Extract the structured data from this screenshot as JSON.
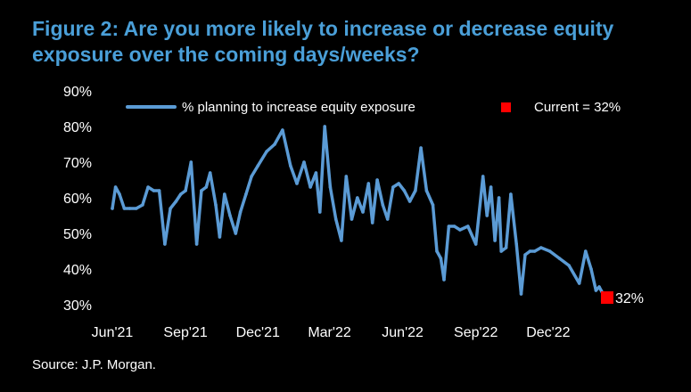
{
  "title": "Figure 2: Are you more likely to increase or decrease equity exposure over the coming days/weeks?",
  "source": "Source: J.P. Morgan.",
  "colors": {
    "title": "#4a9fd8",
    "line": "#5b9bd5",
    "marker": "#ff0000",
    "background": "#000000",
    "text": "#ffffff"
  },
  "chart_data": {
    "type": "line",
    "ylim": [
      30,
      90
    ],
    "yticks": [
      "30%",
      "40%",
      "50%",
      "60%",
      "70%",
      "80%",
      "90%"
    ],
    "yticks_values": [
      30,
      40,
      50,
      60,
      70,
      80,
      90
    ],
    "xticks": [
      "Jun'21",
      "Sep'21",
      "Dec'21",
      "Mar'22",
      "Jun'22",
      "Sep'22",
      "Dec'22"
    ],
    "xlim": [
      "2021-06-01",
      "2023-02-20"
    ],
    "xticks_dates": [
      "2021-06-01",
      "2021-09-01",
      "2021-12-01",
      "2022-03-01",
      "2022-06-01",
      "2022-09-01",
      "2022-12-01"
    ],
    "grid": false,
    "legend_position": "top",
    "series": [
      {
        "name": "% planning to increase equity exposure",
        "x": [
          "2021-06-01",
          "2021-06-05",
          "2021-06-10",
          "2021-06-16",
          "2021-06-23",
          "2021-07-01",
          "2021-07-09",
          "2021-07-16",
          "2021-07-23",
          "2021-07-30",
          "2021-08-06",
          "2021-08-13",
          "2021-08-20",
          "2021-08-26",
          "2021-09-01",
          "2021-09-08",
          "2021-09-15",
          "2021-09-21",
          "2021-09-27",
          "2021-10-02",
          "2021-10-09",
          "2021-10-14",
          "2021-10-20",
          "2021-10-27",
          "2021-11-03",
          "2021-11-09",
          "2021-11-16",
          "2021-11-23",
          "2021-12-01",
          "2021-12-12",
          "2021-12-22",
          "2022-01-01",
          "2022-01-11",
          "2022-01-19",
          "2022-01-28",
          "2022-02-05",
          "2022-02-12",
          "2022-02-17",
          "2022-02-23",
          "2022-03-02",
          "2022-03-09",
          "2022-03-16",
          "2022-03-22",
          "2022-03-29",
          "2022-04-05",
          "2022-04-12",
          "2022-04-19",
          "2022-04-24",
          "2022-04-30",
          "2022-05-07",
          "2022-05-13",
          "2022-05-20",
          "2022-05-27",
          "2022-06-03",
          "2022-06-10",
          "2022-06-17",
          "2022-06-24",
          "2022-07-01",
          "2022-07-09",
          "2022-07-14",
          "2022-07-19",
          "2022-07-23",
          "2022-07-29",
          "2022-08-05",
          "2022-08-12",
          "2022-08-22",
          "2022-09-01",
          "2022-09-10",
          "2022-09-15",
          "2022-09-20",
          "2022-09-25",
          "2022-09-30",
          "2022-10-03",
          "2022-10-09",
          "2022-10-15",
          "2022-10-22",
          "2022-10-28",
          "2022-11-02",
          "2022-11-08",
          "2022-11-14",
          "2022-11-22",
          "2022-12-03",
          "2022-12-15",
          "2022-12-27",
          "2023-01-09",
          "2023-01-17",
          "2023-01-24",
          "2023-01-30",
          "2023-02-03",
          "2023-02-08",
          "2023-02-12"
        ],
        "values": [
          57,
          63,
          61,
          57,
          57,
          57,
          58,
          63,
          62,
          62,
          47,
          57,
          59,
          61,
          62,
          70,
          47,
          62,
          63,
          67,
          58,
          49,
          61,
          55,
          50,
          56,
          61,
          66,
          69,
          73,
          75,
          79,
          69,
          64,
          70,
          63,
          67,
          56,
          80,
          63,
          54,
          48,
          66,
          54,
          60,
          56,
          64,
          53,
          65,
          58,
          54,
          63,
          64,
          62,
          59,
          62,
          74,
          62,
          58,
          45,
          43,
          37,
          52,
          52,
          51,
          52,
          47,
          66,
          55,
          63,
          48,
          60,
          45,
          46,
          61,
          47,
          33,
          44,
          45,
          45,
          46,
          45,
          43,
          41,
          36,
          45,
          40,
          34,
          35,
          33,
          32
        ]
      }
    ],
    "annotations": [
      {
        "label": "Current = 32%",
        "date": "2023-02-12",
        "value": 32,
        "point_label": "32%"
      }
    ]
  }
}
